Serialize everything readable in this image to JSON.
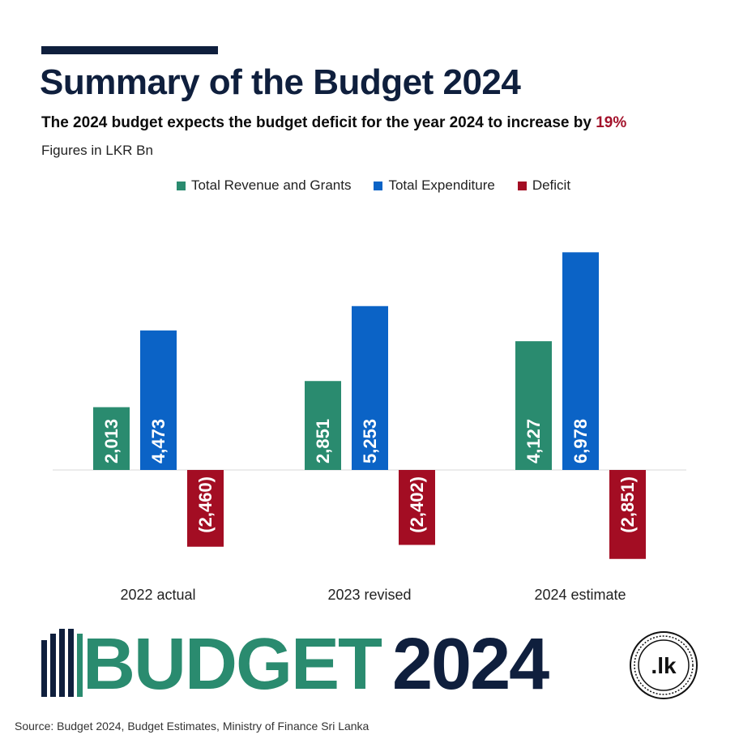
{
  "header": {
    "title": "Summary of the Budget 2024",
    "subtitle_prefix": "The 2024 budget expects the budget deficit for the year 2024 to increase by ",
    "subtitle_highlight": "19%",
    "units": "Figures in LKR Bn"
  },
  "colors": {
    "revenue": "#2a8b6f",
    "expenditure": "#0b63c6",
    "deficit": "#a30d23",
    "title": "#0f1f3d",
    "highlight": "#a3122b"
  },
  "chart_data": {
    "type": "bar",
    "categories": [
      "2022 actual",
      "2023 revised",
      "2024 estimate"
    ],
    "series": [
      {
        "name": "Total Revenue and Grants",
        "values": [
          2013,
          2851,
          4127
        ],
        "labels": [
          "2,013",
          "2,851",
          "4,127"
        ]
      },
      {
        "name": "Total Expenditure",
        "values": [
          4473,
          5253,
          6978
        ],
        "labels": [
          "4,473",
          "5,253",
          "6,978"
        ]
      },
      {
        "name": "Deficit",
        "values": [
          -2460,
          -2402,
          -2851
        ],
        "labels": [
          "(2,460)",
          "(2,402)",
          "(2,851)"
        ]
      }
    ],
    "xlabel": "",
    "ylabel": "",
    "ylim": [
      -2851,
      6978
    ],
    "legend_position": "top-center",
    "grid": false
  },
  "brand": {
    "word": "BUDGET",
    "year": "2024",
    "seal_text": ".lk"
  },
  "footer": {
    "source": "Source: Budget 2024, Budget Estimates, Ministry of Finance Sri Lanka"
  }
}
